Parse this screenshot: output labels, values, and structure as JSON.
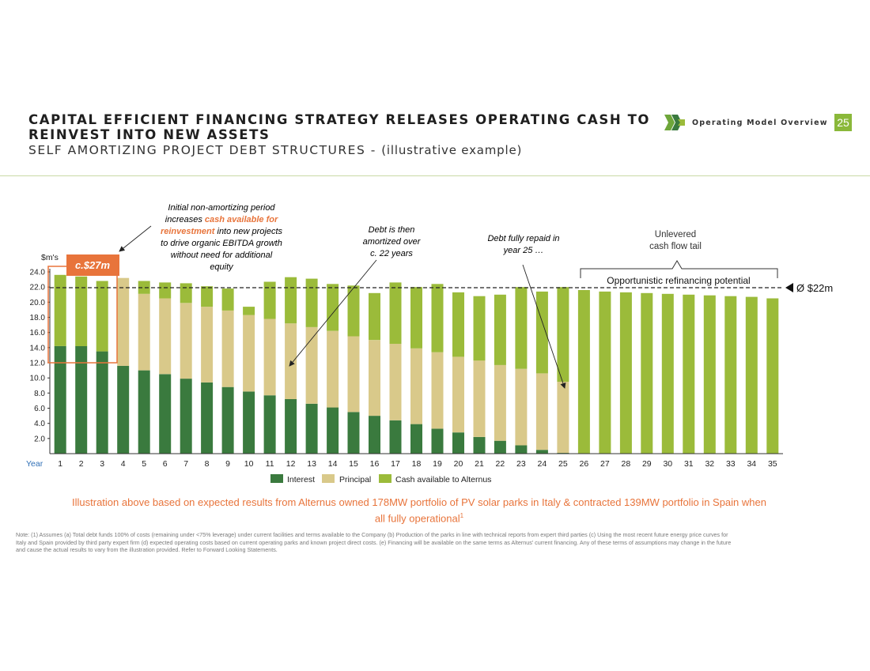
{
  "header": {
    "title": "CAPITAL EFFICIENT FINANCING STRATEGY RELEASES OPERATING CASH TO REINVEST INTO NEW ASSETS",
    "subtitle": "SELF AMORTIZING PROJECT DEBT STRUCTURES -",
    "subtitle_paren": "(illustrative example)",
    "section_label": "Operating Model Overview",
    "page_number": "25",
    "logo_icon": "company-logo-icon"
  },
  "colors": {
    "interest": "#3a7a3e",
    "principal": "#d9c98a",
    "cash": "#9bbb3a",
    "accent": "#e8743b",
    "page_badge": "#8ab83a"
  },
  "chart_data": {
    "type": "bar",
    "stacked": true,
    "y_unit_label": "$m's",
    "x_axis_label": "Year",
    "ylim": [
      0,
      24
    ],
    "yticks": [
      "2.0",
      "4.0",
      "6.0",
      "8.0",
      "10.0",
      "12.0",
      "14.0",
      "16.0",
      "18.0",
      "20.0",
      "22.0",
      "24.0"
    ],
    "categories": [
      "1",
      "2",
      "3",
      "4",
      "5",
      "6",
      "7",
      "8",
      "9",
      "10",
      "11",
      "12",
      "13",
      "14",
      "15",
      "16",
      "17",
      "18",
      "19",
      "20",
      "21",
      "22",
      "23",
      "24",
      "25",
      "26",
      "27",
      "28",
      "29",
      "30",
      "31",
      "32",
      "33",
      "34",
      "35"
    ],
    "series": [
      {
        "name": "Interest",
        "values": [
          14.2,
          14.2,
          13.5,
          11.6,
          11.0,
          10.5,
          9.9,
          9.4,
          8.8,
          8.2,
          7.7,
          7.2,
          6.6,
          6.1,
          5.5,
          5.0,
          4.4,
          3.9,
          3.3,
          2.8,
          2.2,
          1.7,
          1.1,
          0.5,
          0.1,
          0,
          0,
          0,
          0,
          0,
          0,
          0,
          0,
          0,
          0
        ]
      },
      {
        "name": "Principal",
        "values": [
          0,
          0,
          0,
          11.6,
          10.1,
          10.0,
          10.0,
          10.0,
          10.1,
          10.1,
          10.1,
          10.0,
          10.1,
          10.1,
          10.0,
          10.0,
          10.1,
          10.0,
          10.1,
          10.0,
          10.1,
          10.0,
          10.1,
          10.1,
          9.4,
          0,
          0,
          0,
          0,
          0,
          0,
          0,
          0,
          0,
          0
        ]
      },
      {
        "name": "Cash available to Alternus",
        "values": [
          9.4,
          9.2,
          9.3,
          0,
          1.7,
          2.1,
          2.6,
          2.7,
          2.9,
          1.1,
          4.9,
          6.1,
          6.4,
          6.2,
          6.7,
          6.2,
          8.1,
          8.1,
          9.0,
          8.5,
          8.5,
          9.3,
          10.8,
          10.8,
          12.5,
          21.6,
          21.4,
          21.3,
          21.2,
          21.1,
          21.0,
          20.9,
          20.8,
          20.7,
          20.5
        ]
      }
    ],
    "reference_line": {
      "value": 22.0,
      "label": "Ø $22m"
    },
    "annotations": {
      "c27_label": "c.$27m",
      "initial_pre": "Initial non-amortizing period",
      "initial_mid_a": "increases ",
      "initial_mid_b": "cash available for",
      "initial_mid_c": "reinvestment",
      "initial_mid_d": " into new projects",
      "initial_post_1": "to drive organic EBITDA growth",
      "initial_post_2": "without need for additional",
      "initial_post_3": "equity",
      "debt_then_1": "Debt is then",
      "debt_then_2": "amortized over",
      "debt_then_3": "c. 22 years",
      "repaid_1": "Debt fully repaid in",
      "repaid_2": "year 25 …",
      "unlevered_1": "Unlevered",
      "unlevered_2": "cash flow tail",
      "refinancing": "Opportunistic refinancing potential"
    }
  },
  "footer": {
    "highlight_line1": "Illustration above based on expected results from Alternus owned 178MW portfolio of PV solar parks in Italy & contracted 139MW portfolio in Spain when",
    "highlight_line2": "all fully operational",
    "highlight_sup": "1",
    "note": "Note: (1) Assumes (a) Total debt funds 100% of costs (remaining under <75% leverage) under current facilities and terms available to the Company (b) Production of the parks in line with technical reports from expert third parties (c) Using the most recent future energy price curves for Italy and Spain provided by third party expert firm (d) expected operating costs based on current operating parks and known project direct costs. (e) Financing will be available on the same terms as Alternus' current financing. Any of these terms of assumptions may change in the future and cause the actual results to vary from the illustration provided. Refer to Forward Looking Statements."
  }
}
